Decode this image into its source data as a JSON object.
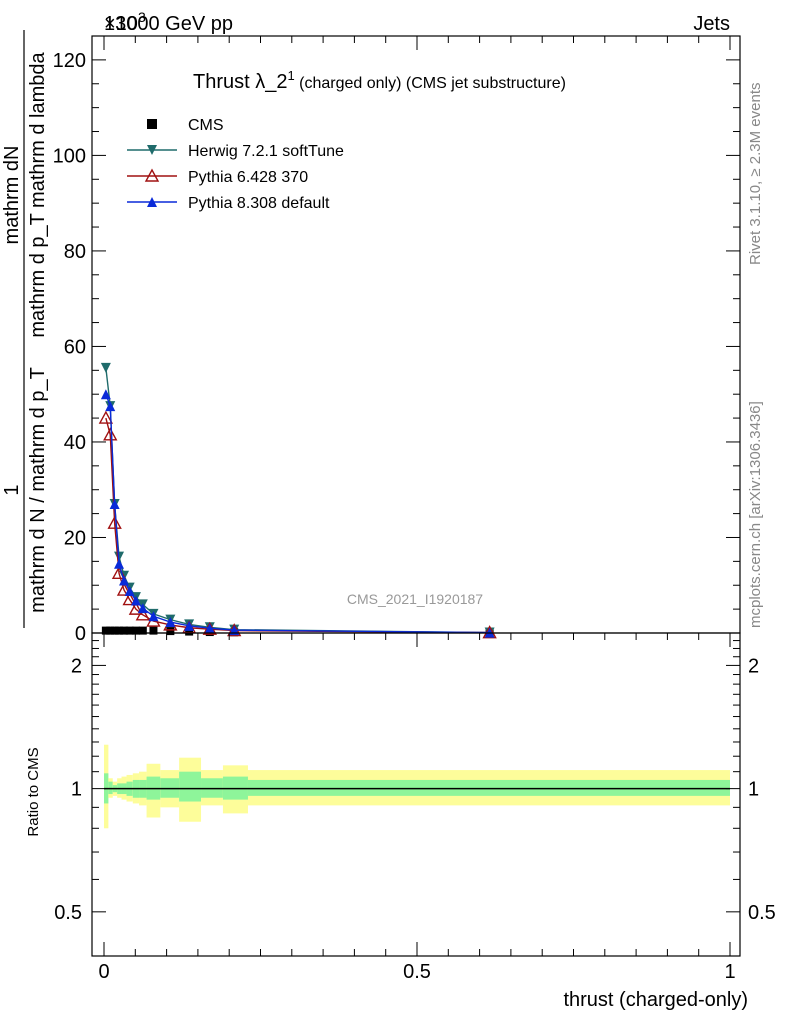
{
  "header": {
    "left": "13000 GeV pp",
    "right": "Jets",
    "exponent": "×10",
    "exponent_power": "3"
  },
  "side_labels": {
    "rivet": "Rivet 3.1.10, ≥ 2.3M events",
    "mcplots": "mcplots.cern.ch [arXiv:1306.3436]"
  },
  "watermark": "CMS_2021_I1920187",
  "colors": {
    "cms": "#000000",
    "herwig": "#1f6b6b",
    "pythia6": "#a01010",
    "pythia8": "#0a2ad8",
    "band_stat": "#8ef59a",
    "band_total": "#fdfd9a"
  },
  "chart_data": [
    {
      "type": "line",
      "title_main": "Thrust λ_2",
      "title_sup": "1",
      "title_rest": " (charged only) (CMS jet substructure)",
      "ylabel_outer": "1",
      "ylabel_num": "mathrm dN",
      "ylabel_inner": "mathrm d p_T mathrm d lambda",
      "ylabel_den": "mathrm d N / mathrm d p_T",
      "xlim": [
        0,
        1
      ],
      "ylim": [
        0,
        125000
      ],
      "y_ticks": [
        0,
        20000,
        40000,
        60000,
        80000,
        100000,
        120000
      ],
      "y_tick_labels": [
        "0",
        "20",
        "40",
        "60",
        "80",
        "100",
        "120"
      ],
      "legend": [
        "CMS",
        "Herwig 7.2.1 softTune",
        "Pythia 6.428 370",
        "Pythia 8.308 default"
      ],
      "series": [
        {
          "name": "CMS",
          "marker": "square",
          "x": [
            0.003,
            0.01,
            0.017,
            0.024,
            0.032,
            0.041,
            0.051,
            0.062,
            0.079,
            0.106,
            0.136,
            0.169,
            0.208,
            0.616
          ],
          "y": [
            500,
            500,
            500,
            500,
            500,
            500,
            500,
            500,
            500,
            400,
            300,
            200,
            150,
            50
          ]
        },
        {
          "name": "Herwig 7.2.1 softTune",
          "marker": "triangle-down",
          "x": [
            0.003,
            0.01,
            0.017,
            0.024,
            0.032,
            0.041,
            0.051,
            0.062,
            0.079,
            0.106,
            0.136,
            0.169,
            0.208,
            0.616
          ],
          "y": [
            55500,
            47500,
            27000,
            16000,
            12000,
            9500,
            7500,
            6000,
            4000,
            2800,
            1800,
            1200,
            700,
            100
          ]
        },
        {
          "name": "Pythia 6.428 370",
          "marker": "triangle-up-open",
          "x": [
            0.003,
            0.01,
            0.017,
            0.024,
            0.032,
            0.041,
            0.051,
            0.062,
            0.079,
            0.106,
            0.136,
            0.169,
            0.208,
            0.616
          ],
          "y": [
            45000,
            41500,
            23000,
            12500,
            9000,
            7000,
            5000,
            3800,
            2500,
            1700,
            1100,
            800,
            500,
            80
          ]
        },
        {
          "name": "Pythia 8.308 default",
          "marker": "triangle-up",
          "x": [
            0.003,
            0.01,
            0.017,
            0.024,
            0.032,
            0.041,
            0.051,
            0.062,
            0.079,
            0.106,
            0.136,
            0.169,
            0.208,
            0.616
          ],
          "y": [
            50000,
            47500,
            27000,
            14500,
            11000,
            8800,
            6800,
            5200,
            3500,
            2300,
            1500,
            1000,
            600,
            90
          ]
        }
      ]
    },
    {
      "type": "area",
      "ylabel": "Ratio to CMS",
      "xlabel": "thrust (charged-only)",
      "xlim": [
        0,
        1
      ],
      "ylim": [
        0.39,
        2.4
      ],
      "y_scale": "log",
      "y_ticks": [
        0.5,
        1,
        2
      ],
      "y_tick_labels": [
        "0.5",
        "1",
        "2"
      ],
      "x_ticks": [
        0,
        0.5,
        1
      ],
      "x_tick_labels": [
        "0",
        "0.5",
        "1"
      ],
      "reference_line": 1,
      "bins": [
        {
          "x0": 0.0,
          "x1": 0.007,
          "stat": [
            0.92,
            1.09
          ],
          "total": [
            0.8,
            1.28
          ]
        },
        {
          "x0": 0.007,
          "x1": 0.014,
          "stat": [
            0.97,
            1.04
          ],
          "total": [
            0.95,
            1.06
          ]
        },
        {
          "x0": 0.014,
          "x1": 0.021,
          "stat": [
            0.98,
            1.02
          ],
          "total": [
            0.96,
            1.04
          ]
        },
        {
          "x0": 0.021,
          "x1": 0.028,
          "stat": [
            0.97,
            1.03
          ],
          "total": [
            0.95,
            1.06
          ]
        },
        {
          "x0": 0.028,
          "x1": 0.036,
          "stat": [
            0.97,
            1.03
          ],
          "total": [
            0.94,
            1.07
          ]
        },
        {
          "x0": 0.036,
          "x1": 0.046,
          "stat": [
            0.96,
            1.04
          ],
          "total": [
            0.93,
            1.08
          ]
        },
        {
          "x0": 0.046,
          "x1": 0.056,
          "stat": [
            0.95,
            1.05
          ],
          "total": [
            0.92,
            1.09
          ]
        },
        {
          "x0": 0.056,
          "x1": 0.068,
          "stat": [
            0.95,
            1.05
          ],
          "total": [
            0.91,
            1.1
          ]
        },
        {
          "x0": 0.068,
          "x1": 0.09,
          "stat": [
            0.94,
            1.07
          ],
          "total": [
            0.85,
            1.15
          ]
        },
        {
          "x0": 0.09,
          "x1": 0.12,
          "stat": [
            0.95,
            1.06
          ],
          "total": [
            0.9,
            1.11
          ]
        },
        {
          "x0": 0.12,
          "x1": 0.155,
          "stat": [
            0.93,
            1.1
          ],
          "total": [
            0.83,
            1.19
          ]
        },
        {
          "x0": 0.155,
          "x1": 0.19,
          "stat": [
            0.95,
            1.06
          ],
          "total": [
            0.91,
            1.11
          ]
        },
        {
          "x0": 0.19,
          "x1": 0.23,
          "stat": [
            0.94,
            1.07
          ],
          "total": [
            0.87,
            1.14
          ]
        },
        {
          "x0": 0.23,
          "x1": 1.0,
          "stat": [
            0.96,
            1.05
          ],
          "total": [
            0.91,
            1.11
          ]
        }
      ]
    }
  ]
}
